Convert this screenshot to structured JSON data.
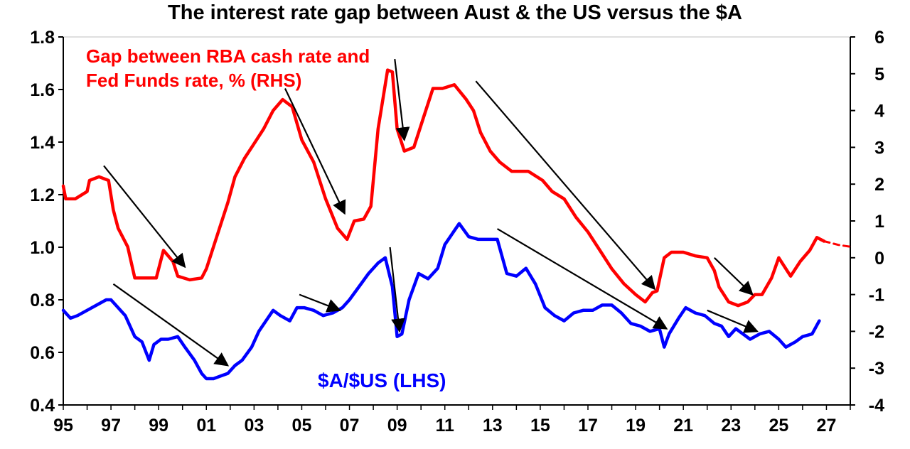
{
  "chart_data": {
    "type": "line",
    "title": "The interest rate gap between Aust & the US versus the $A",
    "x_axis": {
      "range": [
        1995,
        2028
      ],
      "tick_labels": [
        "95",
        "97",
        "99",
        "01",
        "03",
        "05",
        "07",
        "09",
        "11",
        "13",
        "15",
        "17",
        "19",
        "21",
        "23",
        "25",
        "27"
      ]
    },
    "y_left": {
      "range": [
        0.4,
        1.8
      ],
      "tick_labels": [
        "0.4",
        "0.6",
        "0.8",
        "1.0",
        "1.2",
        "1.4",
        "1.6",
        "1.8"
      ]
    },
    "y_right": {
      "range": [
        -4,
        6
      ],
      "tick_labels": [
        "-4",
        "-3",
        "-2",
        "-1",
        "0",
        "1",
        "2",
        "3",
        "4",
        "5",
        "6"
      ]
    },
    "grid": false,
    "series": [
      {
        "name": "Gap between RBA cash rate and Fed Funds rate, % (RHS)",
        "axis": "right",
        "color": "#ff0000",
        "x": [
          1995.0,
          1995.1,
          1995.5,
          1996.0,
          1996.1,
          1996.5,
          1996.9,
          1997.1,
          1997.3,
          1997.7,
          1998.0,
          1998.3,
          1998.7,
          1998.9,
          1999.2,
          1999.6,
          1999.8,
          2000.3,
          2000.8,
          2001.0,
          2001.3,
          2001.6,
          2001.9,
          2002.2,
          2002.6,
          2003.0,
          2003.4,
          2003.8,
          2004.2,
          2004.6,
          2005.0,
          2005.5,
          2006.0,
          2006.5,
          2006.9,
          2007.2,
          2007.6,
          2007.9,
          2008.2,
          2008.6,
          2008.8,
          2009.0,
          2009.3,
          2009.7,
          2010.1,
          2010.5,
          2010.9,
          2011.4,
          2011.9,
          2012.2,
          2012.5,
          2012.9,
          2013.3,
          2013.8,
          2014.5,
          2015.1,
          2015.5,
          2016.0,
          2016.5,
          2017.0,
          2017.5,
          2018.0,
          2018.5,
          2019.0,
          2019.4,
          2019.7,
          2019.9,
          2020.2,
          2020.5,
          2021.0,
          2021.5,
          2022.0,
          2022.3,
          2022.5,
          2022.9,
          2023.3,
          2023.7,
          2024.0,
          2024.3,
          2024.7,
          2025.0,
          2025.5,
          2025.9,
          2026.3,
          2026.6,
          2026.9
        ],
        "y": [
          1.95,
          1.6,
          1.6,
          1.8,
          2.1,
          2.2,
          2.1,
          1.3,
          0.8,
          0.3,
          -0.55,
          -0.55,
          -0.55,
          -0.55,
          0.2,
          -0.1,
          -0.5,
          -0.6,
          -0.55,
          -0.3,
          0.3,
          0.9,
          1.5,
          2.2,
          2.7,
          3.1,
          3.5,
          4.0,
          4.3,
          4.1,
          3.2,
          2.6,
          1.6,
          0.8,
          0.5,
          1.0,
          1.05,
          1.4,
          3.5,
          5.1,
          5.05,
          3.5,
          2.9,
          3.0,
          3.8,
          4.6,
          4.6,
          4.7,
          4.3,
          4.0,
          3.4,
          2.9,
          2.6,
          2.35,
          2.35,
          2.1,
          1.8,
          1.6,
          1.1,
          0.7,
          0.2,
          -0.3,
          -0.7,
          -1.0,
          -1.2,
          -0.95,
          -0.9,
          0.0,
          0.15,
          0.15,
          0.05,
          0.0,
          -0.35,
          -0.8,
          -1.2,
          -1.3,
          -1.2,
          -1.0,
          -1.0,
          -0.55,
          0.0,
          -0.5,
          -0.1,
          0.2,
          0.55,
          0.45
        ]
      },
      {
        "name": "$A/$US (LHS)",
        "axis": "left",
        "color": "#0000ff",
        "x": [
          1995.0,
          1995.3,
          1995.6,
          1996.0,
          1996.4,
          1996.8,
          1997.0,
          1997.3,
          1997.6,
          1998.0,
          1998.3,
          1998.6,
          1998.8,
          1999.1,
          1999.4,
          1999.8,
          2000.1,
          2000.5,
          2000.8,
          2001.0,
          2001.3,
          2001.6,
          2001.9,
          2002.2,
          2002.5,
          2002.9,
          2003.2,
          2003.5,
          2003.8,
          2004.1,
          2004.5,
          2004.8,
          2005.1,
          2005.5,
          2005.9,
          2006.3,
          2006.7,
          2007.0,
          2007.4,
          2007.8,
          2008.2,
          2008.5,
          2008.8,
          2009.0,
          2009.2,
          2009.5,
          2009.9,
          2010.3,
          2010.7,
          2011.0,
          2011.3,
          2011.6,
          2012.0,
          2012.4,
          2012.8,
          2013.2,
          2013.6,
          2014.0,
          2014.4,
          2014.8,
          2015.2,
          2015.6,
          2016.0,
          2016.4,
          2016.8,
          2017.2,
          2017.6,
          2018.0,
          2018.4,
          2018.8,
          2019.2,
          2019.6,
          2020.0,
          2020.2,
          2020.4,
          2020.8,
          2021.1,
          2021.5,
          2021.9,
          2022.3,
          2022.6,
          2022.9,
          2023.2,
          2023.5,
          2023.8,
          2024.2,
          2024.6,
          2025.0,
          2025.3,
          2025.7,
          2026.0,
          2026.4,
          2026.7
        ],
        "y": [
          0.76,
          0.73,
          0.74,
          0.76,
          0.78,
          0.8,
          0.8,
          0.77,
          0.74,
          0.66,
          0.64,
          0.57,
          0.63,
          0.65,
          0.65,
          0.66,
          0.62,
          0.57,
          0.52,
          0.5,
          0.5,
          0.51,
          0.52,
          0.55,
          0.57,
          0.62,
          0.68,
          0.72,
          0.76,
          0.74,
          0.72,
          0.77,
          0.77,
          0.76,
          0.74,
          0.75,
          0.77,
          0.8,
          0.85,
          0.9,
          0.94,
          0.96,
          0.85,
          0.66,
          0.67,
          0.8,
          0.9,
          0.88,
          0.92,
          1.01,
          1.05,
          1.09,
          1.04,
          1.03,
          1.03,
          1.03,
          0.9,
          0.89,
          0.92,
          0.86,
          0.77,
          0.74,
          0.72,
          0.75,
          0.76,
          0.76,
          0.78,
          0.78,
          0.75,
          0.71,
          0.7,
          0.68,
          0.69,
          0.62,
          0.67,
          0.73,
          0.77,
          0.75,
          0.74,
          0.71,
          0.7,
          0.66,
          0.69,
          0.67,
          0.65,
          0.67,
          0.68,
          0.65,
          0.62,
          0.64,
          0.66,
          0.67,
          0.72
        ]
      },
      {
        "name": "",
        "axis": "right",
        "color": "#ff0000",
        "dashed": true,
        "x": [
          2026.9,
          2027.5,
          2028.0
        ],
        "y": [
          0.45,
          0.35,
          0.3
        ]
      }
    ],
    "annotations": {
      "gap_label": "Gap between RBA cash rate and Fed Funds rate, % (RHS)",
      "aud_label": "$A/$US (LHS)"
    },
    "arrows": [
      {
        "from": [
          1996.7,
          2.5
        ],
        "to": [
          2000.1,
          -0.25
        ],
        "axis": "right"
      },
      {
        "from": [
          2004.3,
          4.6
        ],
        "to": [
          2006.8,
          1.2
        ],
        "axis": "right"
      },
      {
        "from": [
          2008.9,
          5.4
        ],
        "to": [
          2009.3,
          3.2
        ],
        "axis": "right"
      },
      {
        "from": [
          2012.3,
          4.8
        ],
        "to": [
          2019.8,
          -0.85
        ],
        "axis": "right"
      },
      {
        "from": [
          2022.3,
          0.0
        ],
        "to": [
          2023.9,
          -1.0
        ],
        "axis": "right"
      },
      {
        "from": [
          1997.1,
          0.86
        ],
        "to": [
          2001.9,
          0.55
        ],
        "axis": "left"
      },
      {
        "from": [
          2004.9,
          0.82
        ],
        "to": [
          2006.6,
          0.76
        ],
        "axis": "left"
      },
      {
        "from": [
          2008.7,
          1.0
        ],
        "to": [
          2009.1,
          0.68
        ],
        "axis": "left"
      },
      {
        "from": [
          2013.2,
          1.07
        ],
        "to": [
          2020.3,
          0.69
        ],
        "axis": "left"
      },
      {
        "from": [
          2022.0,
          0.76
        ],
        "to": [
          2024.1,
          0.68
        ],
        "axis": "left"
      }
    ]
  }
}
